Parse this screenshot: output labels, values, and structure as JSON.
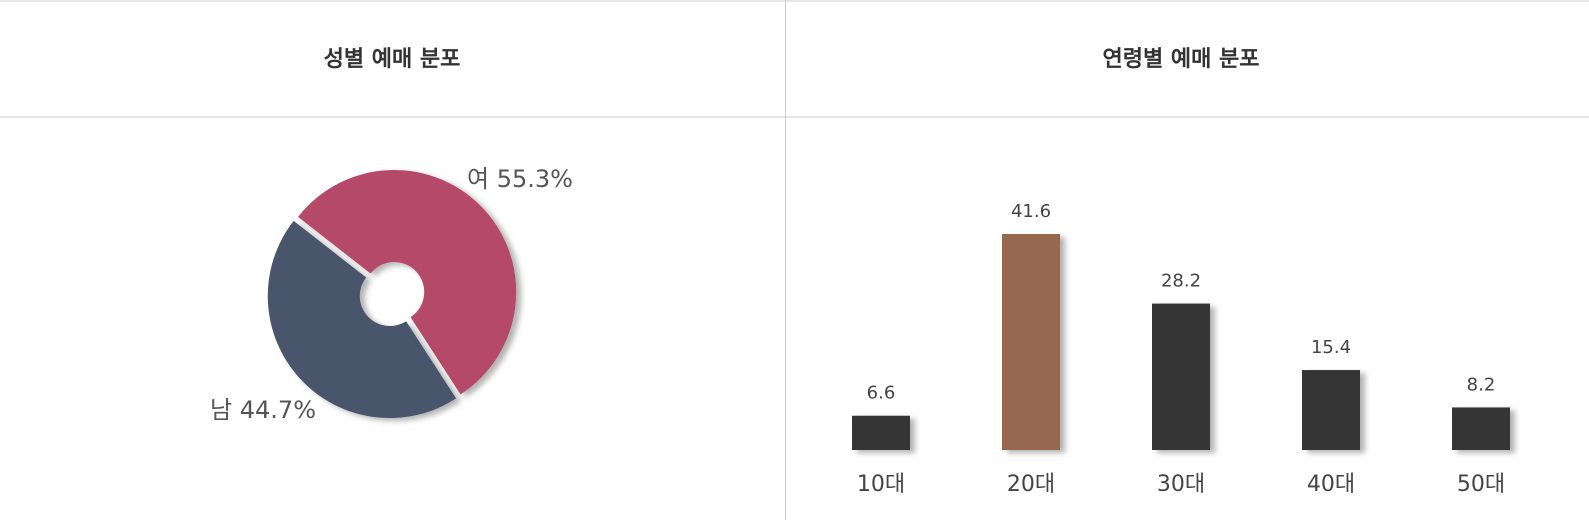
{
  "charts": [
    {
      "type": "pie",
      "title": "성별 예매 분포",
      "values": [
        55.3,
        44.7
      ],
      "value_labels": [
        "여 55.3%",
        "남 44.7%"
      ],
      "colors": [
        "#b5486a",
        "#49546b"
      ]
    },
    {
      "type": "bar",
      "title": "연령별 예매 분포",
      "categories": [
        "10대",
        "20대",
        "30대",
        "40대",
        "50대"
      ],
      "values": [
        6.6,
        41.6,
        28.2,
        15.4,
        8.2
      ],
      "colors": [
        "#363534",
        "#96684f",
        "#363534",
        "#363534",
        "#363534"
      ]
    }
  ]
}
